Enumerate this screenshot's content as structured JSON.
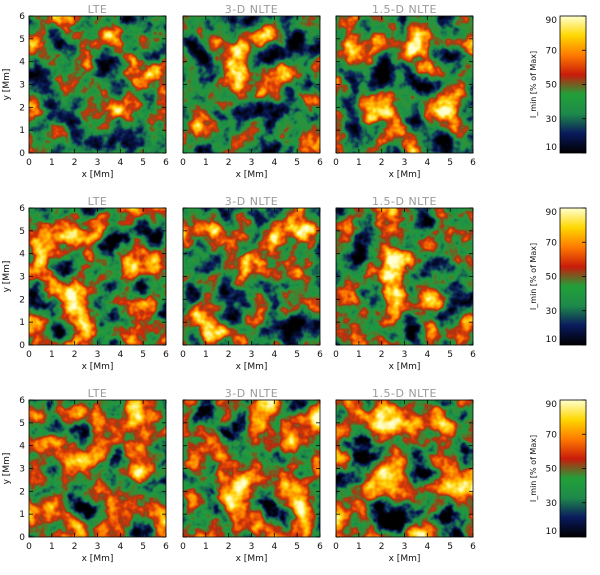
{
  "chart_data": {
    "type": "heatmap",
    "rows": [
      {
        "panels": [
          {
            "title": "LTE",
            "level": 0.3
          },
          {
            "title": "3-D NLTE",
            "level": 0.34
          },
          {
            "title": "1.5-D NLTE",
            "level": 0.32
          }
        ],
        "colorbar": {
          "label": "I_min [% of Max]",
          "range": [
            10,
            90
          ],
          "ticks": [
            "10",
            "30",
            "50",
            "70",
            "90"
          ]
        }
      },
      {
        "panels": [
          {
            "title": "LTE",
            "level": 0.46
          },
          {
            "title": "3-D NLTE",
            "level": 0.36
          },
          {
            "title": "1.5-D NLTE",
            "level": 0.38
          }
        ],
        "colorbar": {
          "label": "I_min [% of Max]",
          "range": [
            10,
            90
          ],
          "ticks": [
            "10",
            "30",
            "50",
            "70",
            "90"
          ]
        }
      },
      {
        "panels": [
          {
            "title": "LTE",
            "level": 0.52
          },
          {
            "title": "3-D NLTE",
            "level": 0.55
          },
          {
            "title": "1.5-D NLTE",
            "level": 0.53
          }
        ],
        "colorbar": {
          "label": "I_min [% of Max]",
          "range": [
            10,
            90
          ],
          "ticks": [
            "10",
            "30",
            "50",
            "70",
            "90"
          ]
        }
      }
    ],
    "x_axis": {
      "label": "x [Mm]",
      "ticks": [
        "0",
        "1",
        "2",
        "3",
        "4",
        "5",
        "6"
      ],
      "range": [
        0,
        6
      ]
    },
    "y_axis": {
      "label": "y [Mm]",
      "ticks": [
        "0",
        "1",
        "2",
        "3",
        "4",
        "5",
        "6"
      ],
      "range": [
        0,
        6
      ]
    },
    "colormap": [
      "#000000",
      "#0a1a5e",
      "#1e8a4a",
      "#22a03a",
      "#c81c0a",
      "#ff7a00",
      "#ffd700",
      "#ffffd0"
    ]
  }
}
